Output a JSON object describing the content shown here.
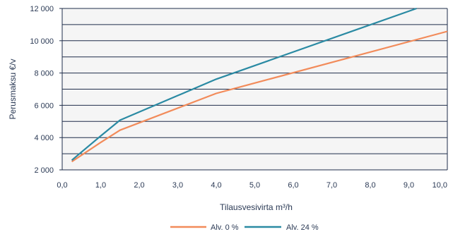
{
  "chart_data": {
    "type": "line",
    "title": "",
    "xlabel": "Tilausvesivirta m³/h",
    "ylabel": "Perusmaksu €/v",
    "xlim": [
      0,
      10
    ],
    "ylim": [
      2000,
      12000
    ],
    "x_ticks": [
      "0,0",
      "1,0",
      "2,0",
      "3,0",
      "4,0",
      "5,0",
      "6,0",
      "7,0",
      "8,0",
      "9,0",
      "10,0"
    ],
    "y_ticks": [
      "2 000",
      "4 000",
      "6 000",
      "8 000",
      "10 000",
      "12 000"
    ],
    "grid": "horizontal",
    "background": "#f5f5f5",
    "legend_position": "bottom",
    "series": [
      {
        "name": "Alv. 0 %",
        "color": "#f28b5a",
        "x": [
          0.25,
          1.0,
          1.5,
          4.0,
          10.0
        ],
        "values": [
          2510,
          3700,
          4460,
          6740,
          10580
        ]
      },
      {
        "name": "Alv. 24 %",
        "color": "#2a8aa3",
        "x": [
          0.25,
          1.0,
          1.5,
          4.0,
          9.2
        ],
        "values": [
          2600,
          4100,
          5080,
          7620,
          12000
        ]
      }
    ]
  }
}
